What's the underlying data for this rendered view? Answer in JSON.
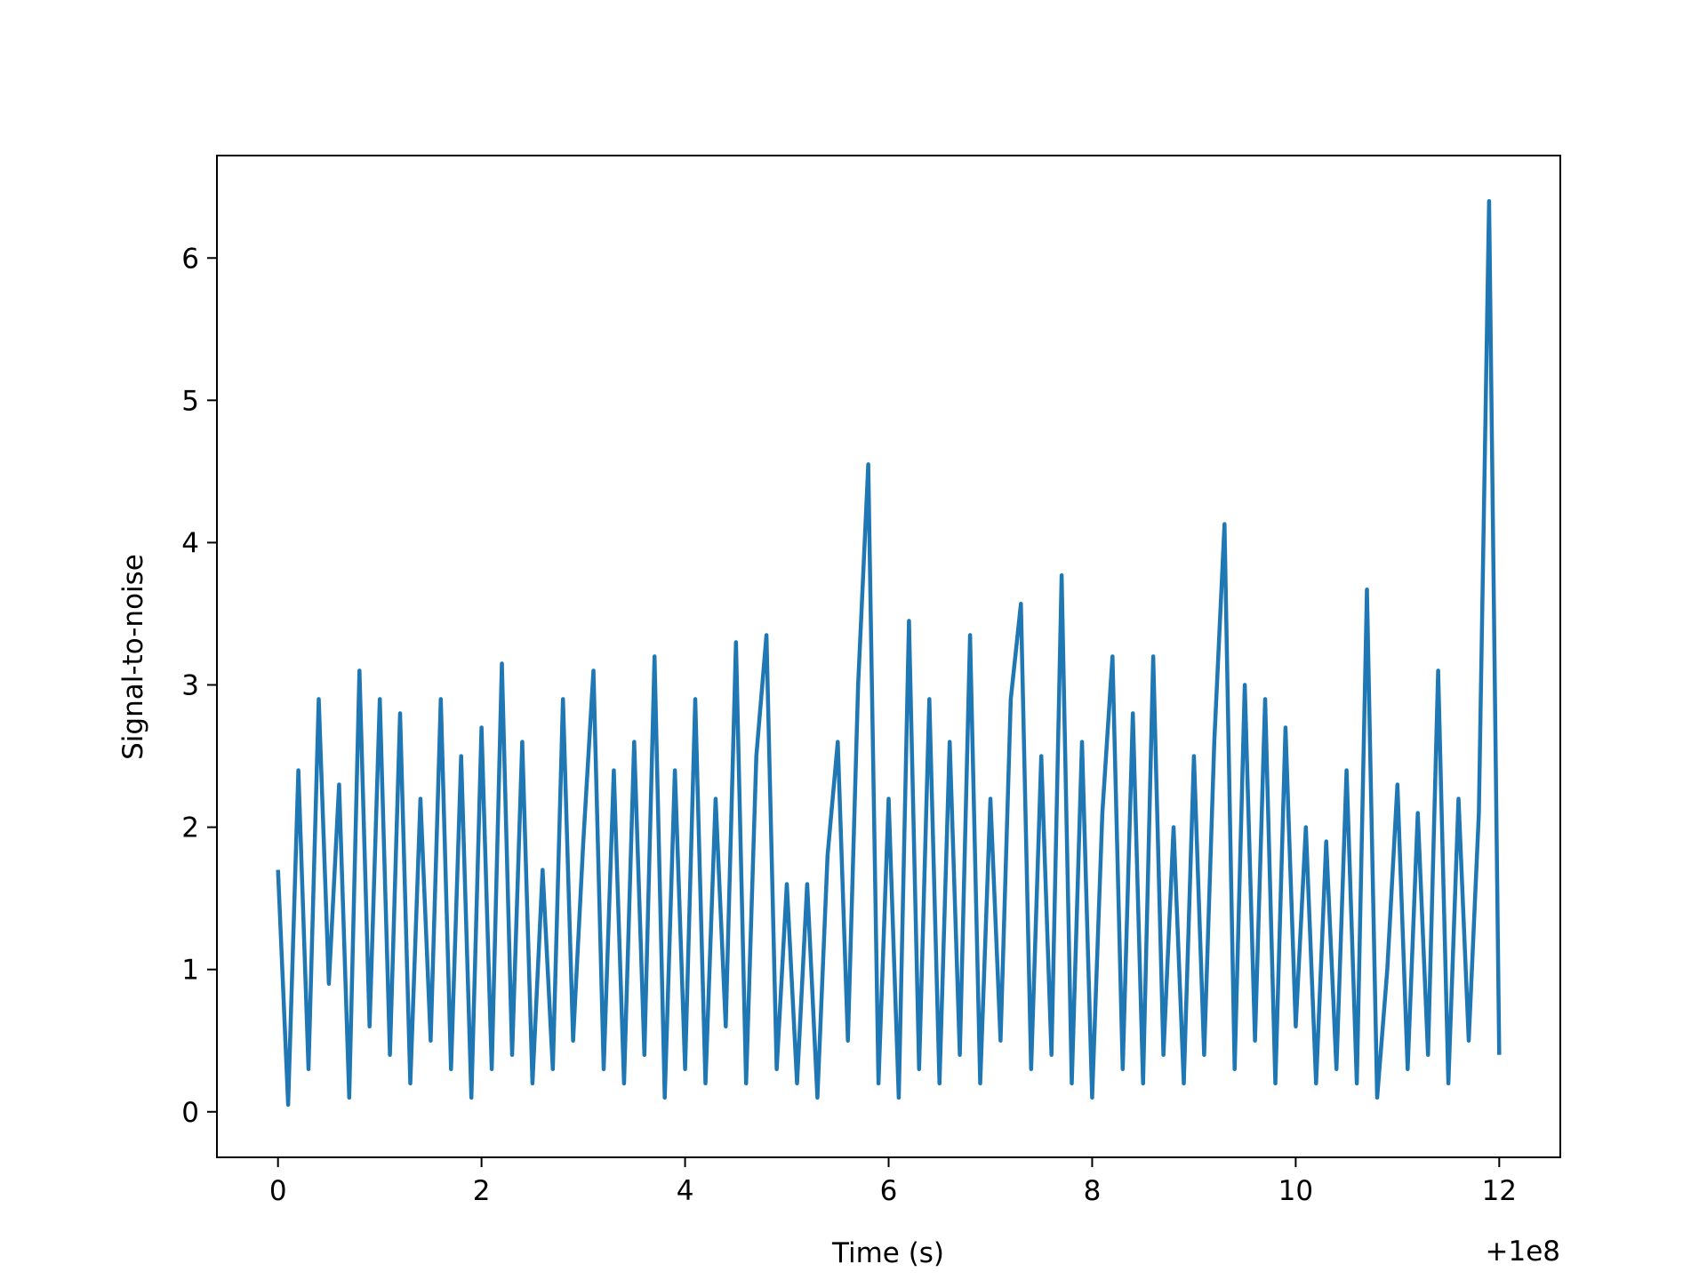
{
  "chart_data": {
    "type": "line",
    "xlabel": "Time (s)",
    "ylabel": "Signal-to-noise",
    "x_offset_label": "+1e8",
    "x": [
      0,
      0.1,
      0.2,
      0.3,
      0.4,
      0.5,
      0.6,
      0.7,
      0.8,
      0.9,
      1,
      1.1,
      1.2,
      1.3,
      1.4,
      1.5,
      1.6,
      1.7,
      1.8,
      1.9,
      2,
      2.1,
      2.2,
      2.3,
      2.4,
      2.5,
      2.6,
      2.7,
      2.8,
      2.9,
      3,
      3.1,
      3.2,
      3.3,
      3.4,
      3.5,
      3.6,
      3.7,
      3.8,
      3.9,
      4,
      4.1,
      4.2,
      4.3,
      4.4,
      4.5,
      4.6,
      4.7,
      4.8,
      4.9,
      5,
      5.1,
      5.2,
      5.3,
      5.4,
      5.5,
      5.6,
      5.7,
      5.8,
      5.9,
      6,
      6.1,
      6.2,
      6.3,
      6.4,
      6.5,
      6.6,
      6.7,
      6.8,
      6.9,
      7,
      7.1,
      7.2,
      7.3,
      7.4,
      7.5,
      7.6,
      7.7,
      7.8,
      7.9,
      8,
      8.1,
      8.2,
      8.3,
      8.4,
      8.5,
      8.6,
      8.7,
      8.8,
      8.9,
      9,
      9.1,
      9.2,
      9.3,
      9.4,
      9.5,
      9.6,
      9.7,
      9.8,
      9.9,
      10,
      10.1,
      10.2,
      10.3,
      10.4,
      10.5,
      10.6,
      10.7,
      10.8,
      10.9,
      11,
      11.1,
      11.2,
      11.3,
      11.4,
      11.5,
      11.6,
      11.7,
      11.8,
      11.9,
      12
    ],
    "series": [
      {
        "color": "#1f77b4",
        "values": [
          1.7,
          0.05,
          2.4,
          0.3,
          2.9,
          0.9,
          2.3,
          0.1,
          3.1,
          0.6,
          2.9,
          0.4,
          2.8,
          0.2,
          2.2,
          0.5,
          2.9,
          0.3,
          2.5,
          0.1,
          2.7,
          0.3,
          3.15,
          0.4,
          2.6,
          0.2,
          1.7,
          0.3,
          2.9,
          0.5,
          1.9,
          3.1,
          0.3,
          2.4,
          0.2,
          2.6,
          0.4,
          3.2,
          0.1,
          2.4,
          0.3,
          2.9,
          0.2,
          2.2,
          0.6,
          3.3,
          0.2,
          2.5,
          3.35,
          0.3,
          1.6,
          0.2,
          1.6,
          0.1,
          1.8,
          2.6,
          0.5,
          3.0,
          4.55,
          0.2,
          2.2,
          0.1,
          3.45,
          0.3,
          2.9,
          0.2,
          2.6,
          0.4,
          3.35,
          0.2,
          2.2,
          0.5,
          2.9,
          3.57,
          0.3,
          2.5,
          0.4,
          3.77,
          0.2,
          2.6,
          0.1,
          2.1,
          3.2,
          0.3,
          2.8,
          0.2,
          3.2,
          0.4,
          2.0,
          0.2,
          2.5,
          0.4,
          2.6,
          4.13,
          0.3,
          3.0,
          0.5,
          2.9,
          0.2,
          2.7,
          0.6,
          2.0,
          0.2,
          1.9,
          0.3,
          2.4,
          0.2,
          3.67,
          0.1,
          1.0,
          2.3,
          0.3,
          2.1,
          0.4,
          3.1,
          0.2,
          2.2,
          0.5,
          2.1,
          6.4,
          0.4
        ]
      }
    ],
    "xlim": [
      -0.6,
      12.6
    ],
    "xticks": [
      0,
      2,
      4,
      6,
      8,
      10,
      12
    ],
    "ylim": [
      -0.32,
      6.72
    ],
    "yticks": [
      0,
      1,
      2,
      3,
      4,
      5,
      6
    ]
  }
}
